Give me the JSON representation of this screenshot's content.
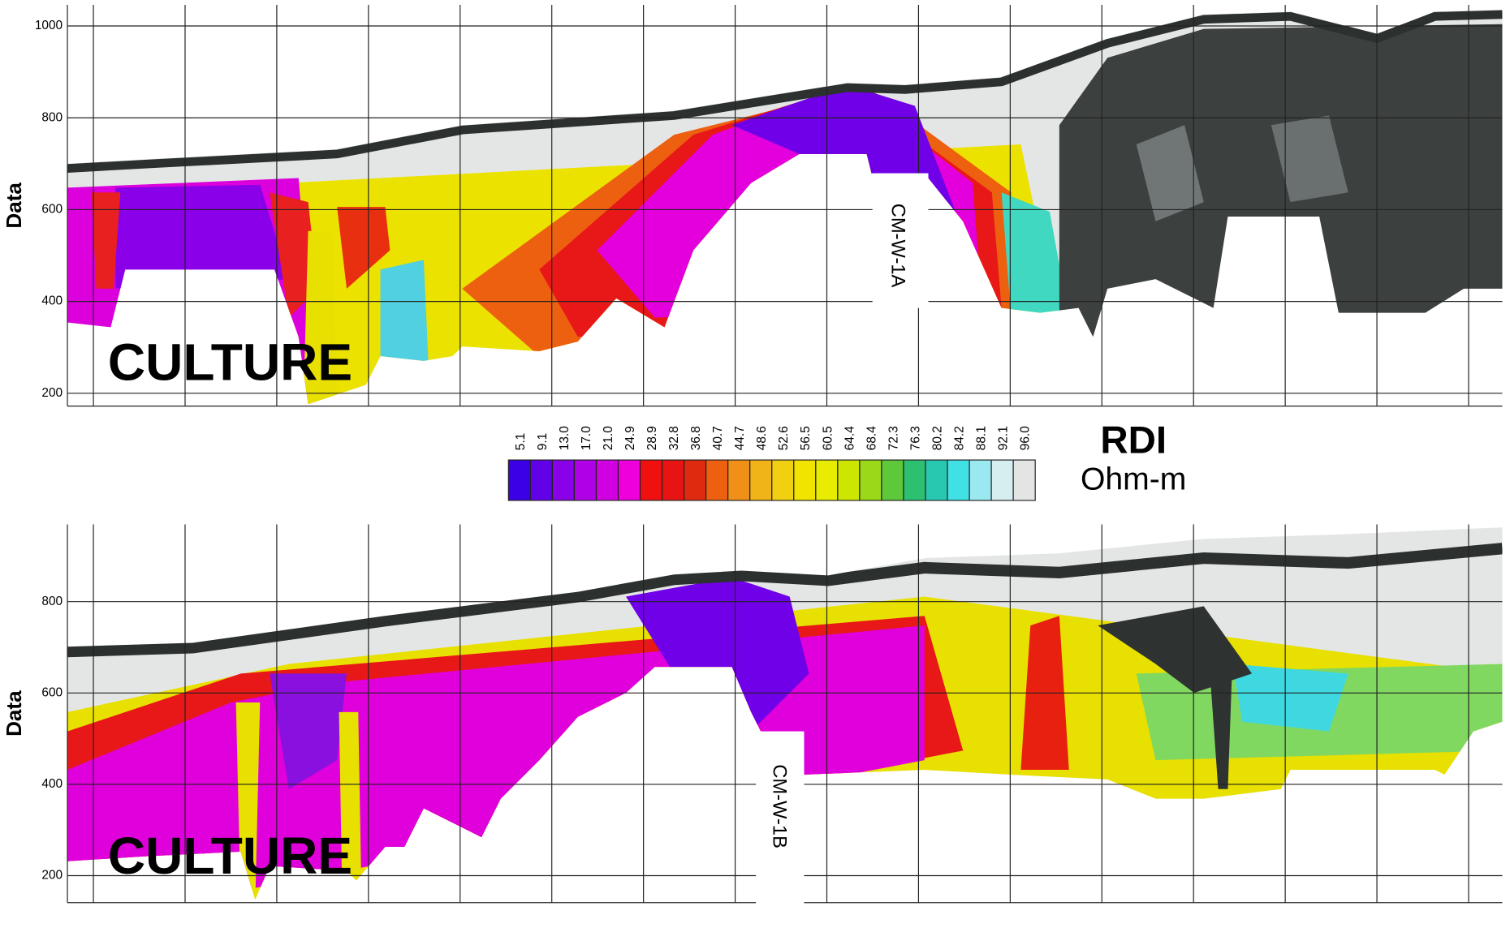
{
  "chart_data": [
    {
      "type": "section",
      "y_label": "Data",
      "ylim": [
        172,
        1046
      ],
      "yticks": [
        200,
        400,
        600,
        800,
        1000
      ],
      "grid": true,
      "annotations": [
        "CULTURE",
        "CM-W-1A"
      ]
    },
    {
      "type": "section",
      "y_label": "Data",
      "ylim": [
        141,
        969
      ],
      "yticks": [
        200,
        400,
        600,
        800
      ],
      "grid": true,
      "annotations": [
        "CULTURE",
        "CM-W-1B"
      ]
    }
  ],
  "colorbar": {
    "title": "RDI",
    "unit": "Ohm-m",
    "labels": [
      5.1,
      9.1,
      {
        "value": 13,
        "label": "13.0"
      },
      {
        "value": 17,
        "label": "17.0"
      },
      {
        "value": 21,
        "label": "21.0"
      },
      24.9,
      28.9,
      32.8,
      36.8,
      40.7,
      44.7,
      48.6,
      52.6,
      56.5,
      60.5,
      64.4,
      68.4,
      72.3,
      76.3,
      80.2,
      84.2,
      88.1,
      92.1,
      {
        "value": 96,
        "label": "96.0"
      }
    ],
    "colors": [
      "#3c00e6",
      "#6200e8",
      "#8a00e8",
      "#b000e6",
      "#d000e2",
      "#ee00dc",
      "#f01010",
      "#e81414",
      "#e02a10",
      "#ec6010",
      "#f09018",
      "#f0b418",
      "#f0d010",
      "#f0e400",
      "#e8ec00",
      "#cce600",
      "#9ad818",
      "#5cc83a",
      "#2cc070",
      "#28c8b0",
      "#40e0e4",
      "#9ae8f0",
      "#d6eef0",
      "#e4e4e4"
    ]
  }
}
